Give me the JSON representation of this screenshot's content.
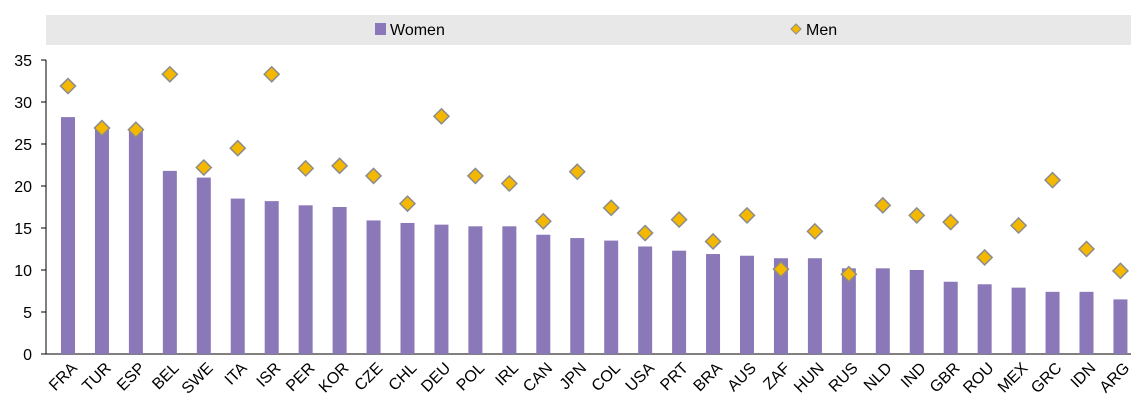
{
  "chart_data": {
    "type": "bar",
    "title": "",
    "xlabel": "",
    "ylabel": "",
    "ylim": [
      0,
      35
    ],
    "yticks": [
      0,
      5,
      10,
      15,
      20,
      25,
      30,
      35
    ],
    "grid": false,
    "legend_position": "top",
    "categories": [
      "FRA",
      "TUR",
      "ESP",
      "BEL",
      "SWE",
      "ITA",
      "ISR",
      "PER",
      "KOR",
      "CZE",
      "CHL",
      "DEU",
      "POL",
      "IRL",
      "CAN",
      "JPN",
      "COL",
      "USA",
      "PRT",
      "BRA",
      "AUS",
      "ZAF",
      "HUN",
      "RUS",
      "NLD",
      "IND",
      "GBR",
      "ROU",
      "MEX",
      "GRC",
      "IDN",
      "ARG"
    ],
    "series": [
      {
        "name": "Women",
        "kind": "bar",
        "color": "#8B78B8",
        "values": [
          28.2,
          27.0,
          26.8,
          21.8,
          21.0,
          18.5,
          18.2,
          17.7,
          17.5,
          15.9,
          15.6,
          15.4,
          15.2,
          15.2,
          14.2,
          13.8,
          13.5,
          12.8,
          12.3,
          11.9,
          11.7,
          11.4,
          11.4,
          10.2,
          10.2,
          10.0,
          8.6,
          8.3,
          7.9,
          7.4,
          7.4,
          6.5
        ]
      },
      {
        "name": "Men",
        "kind": "marker",
        "color": "#F5B800",
        "values": [
          31.9,
          26.9,
          26.7,
          33.3,
          22.2,
          24.5,
          33.3,
          22.1,
          22.4,
          21.2,
          17.9,
          28.3,
          21.2,
          20.3,
          15.8,
          21.7,
          17.4,
          14.4,
          16.0,
          13.4,
          16.5,
          10.1,
          14.6,
          9.5,
          17.7,
          16.5,
          15.7,
          11.5,
          15.3,
          20.7,
          12.5,
          9.9
        ]
      }
    ]
  }
}
